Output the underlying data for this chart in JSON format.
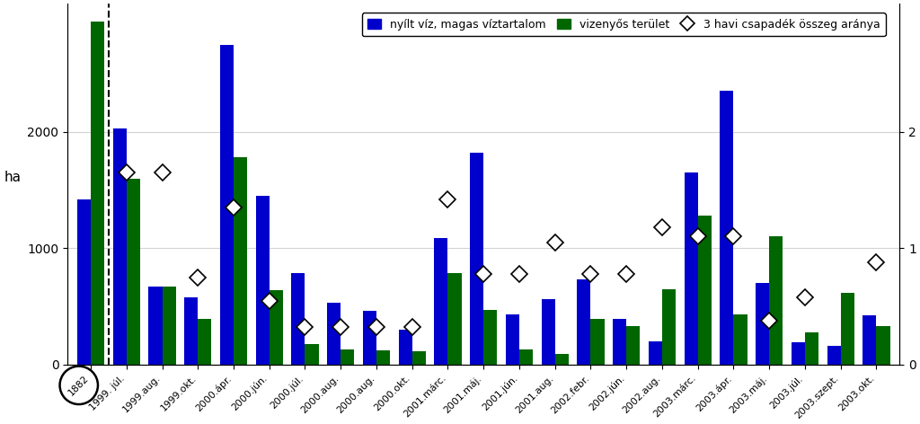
{
  "categories": [
    "1882",
    "1999. júl.",
    "1999.aug.",
    "1999.okt.",
    "2000.ápr.",
    "2000.jún.",
    "2000.júl.",
    "2000.aug.",
    "2000.aug.",
    "2000.okt.",
    "2001.márc.",
    "2001.máj.",
    "2001.jún.",
    "2001.aug.",
    "2002.febr.",
    "2002.jún.",
    "2002.aug.",
    "2003.márc.",
    "2003.ápr.",
    "2003.máj.",
    "2003.júl.",
    "2003.szept.",
    "2003.okt."
  ],
  "blue_values": [
    1420,
    2030,
    670,
    580,
    2750,
    1450,
    790,
    530,
    460,
    300,
    1090,
    1820,
    430,
    560,
    730,
    390,
    200,
    1650,
    2350,
    700,
    190,
    160,
    420
  ],
  "green_values": [
    2950,
    1600,
    670,
    390,
    1780,
    640,
    175,
    130,
    120,
    115,
    790,
    470,
    130,
    90,
    390,
    330,
    650,
    1280,
    430,
    1100,
    280,
    620,
    330
  ],
  "diamond_values": [
    null,
    1.65,
    1.65,
    0.75,
    1.35,
    0.55,
    0.32,
    0.32,
    0.32,
    0.32,
    1.42,
    0.78,
    0.78,
    1.05,
    0.78,
    0.78,
    1.18,
    1.1,
    1.1,
    0.38,
    0.58,
    null,
    0.88
  ],
  "blue_color": "#0000CC",
  "green_color": "#006600",
  "background_color": "#ffffff",
  "ylabel_left": "ha",
  "ylim_left": [
    0,
    3100
  ],
  "ylim_right": [
    0,
    3.1
  ],
  "yticks_left": [
    0,
    1000,
    2000
  ],
  "yticks_right": [
    0,
    1,
    2
  ],
  "legend_labels": [
    "nyílt víz, magas víztartalom",
    "vizenyős terület",
    "3 havi csapadék összeg aránya"
  ],
  "bar_width": 0.38,
  "figsize": [
    10.24,
    4.72
  ],
  "dpi": 100
}
